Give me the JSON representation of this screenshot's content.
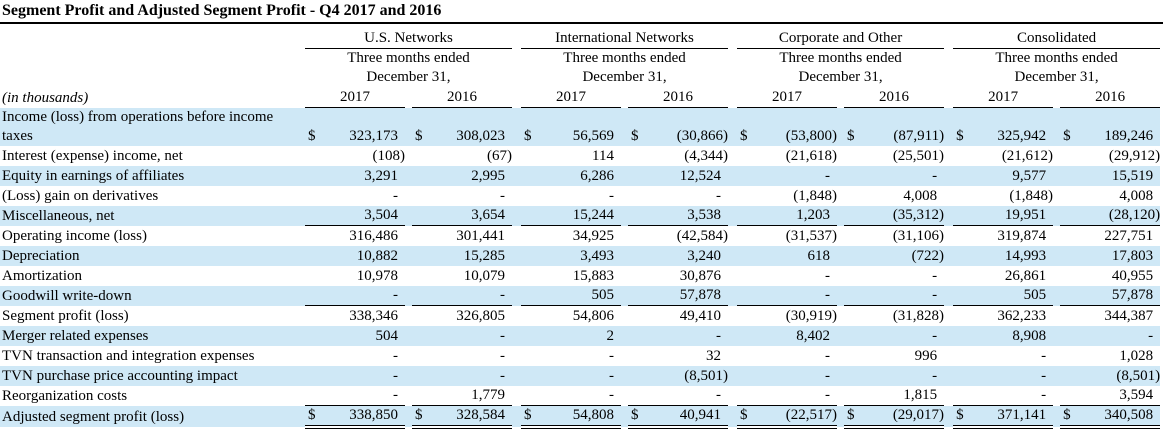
{
  "title": "Segment Profit and Adjusted Segment Profit - Q4 2017 and 2016",
  "colors": {
    "row_band_blue": "#cfe8f6",
    "text": "#000000"
  },
  "table": {
    "row_label_header": "(in thousands)",
    "currency_symbol": "$",
    "groups": [
      {
        "name": "U.S. Networks",
        "period_line1": "Three months ended",
        "period_line2": "December 31,",
        "years": [
          "2017",
          "2016"
        ]
      },
      {
        "name": "International Networks",
        "period_line1": "Three months ended",
        "period_line2": "December 31,",
        "years": [
          "2017",
          "2016"
        ]
      },
      {
        "name": "Corporate and Other",
        "period_line1": "Three months ended",
        "period_line2": "December 31,",
        "years": [
          "2017",
          "2016"
        ]
      },
      {
        "name": "Consolidated",
        "period_line1": "Three months ended",
        "period_line2": "December 31,",
        "years": [
          "2017",
          "2016"
        ]
      }
    ],
    "column_order": [
      "US Networks 2017",
      "US Networks 2016",
      "International Networks 2017",
      "International Networks 2016",
      "Corporate and Other 2017",
      "Corporate and Other 2016",
      "Consolidated 2017",
      "Consolidated 2016"
    ],
    "rows": [
      {
        "label": "Income (loss) from operations before income\ntaxes",
        "dollar": true,
        "shade": "blue",
        "rule": false,
        "double_rule": false,
        "values": [
          "323,173",
          "308,023",
          "56,569",
          "(30,866)",
          "(53,800)",
          "(87,911)",
          "325,942",
          "189,246"
        ]
      },
      {
        "label": "Interest (expense) income, net",
        "dollar": false,
        "shade": "white",
        "rule": false,
        "double_rule": false,
        "values": [
          "(108)",
          "(67)",
          "114",
          "(4,344)",
          "(21,618)",
          "(25,501)",
          "(21,612)",
          "(29,912)"
        ]
      },
      {
        "label": "Equity in earnings of affiliates",
        "dollar": false,
        "shade": "blue",
        "rule": false,
        "double_rule": false,
        "values": [
          "3,291",
          "2,995",
          "6,286",
          "12,524",
          "-",
          "-",
          "9,577",
          "15,519"
        ]
      },
      {
        "label": "(Loss) gain on derivatives",
        "dollar": false,
        "shade": "white",
        "rule": false,
        "double_rule": false,
        "values": [
          "-",
          "-",
          "-",
          "-",
          "(1,848)",
          "4,008",
          "(1,848)",
          "4,008"
        ]
      },
      {
        "label": "Miscellaneous, net",
        "dollar": false,
        "shade": "blue",
        "rule": true,
        "double_rule": false,
        "values": [
          "3,504",
          "3,654",
          "15,244",
          "3,538",
          "1,203",
          "(35,312)",
          "19,951",
          "(28,120)"
        ]
      },
      {
        "label": "Operating income (loss)",
        "dollar": false,
        "shade": "white",
        "rule": false,
        "double_rule": false,
        "values": [
          "316,486",
          "301,441",
          "34,925",
          "(42,584)",
          "(31,537)",
          "(31,106)",
          "319,874",
          "227,751"
        ]
      },
      {
        "label": "Depreciation",
        "dollar": false,
        "shade": "blue",
        "rule": false,
        "double_rule": false,
        "values": [
          "10,882",
          "15,285",
          "3,493",
          "3,240",
          "618",
          "(722)",
          "14,993",
          "17,803"
        ]
      },
      {
        "label": "Amortization",
        "dollar": false,
        "shade": "white",
        "rule": false,
        "double_rule": false,
        "values": [
          "10,978",
          "10,079",
          "15,883",
          "30,876",
          "-",
          "-",
          "26,861",
          "40,955"
        ]
      },
      {
        "label": "Goodwill write-down",
        "dollar": false,
        "shade": "blue",
        "rule": true,
        "double_rule": false,
        "values": [
          "-",
          "-",
          "505",
          "57,878",
          "-",
          "-",
          "505",
          "57,878"
        ]
      },
      {
        "label": "Segment profit (loss)",
        "dollar": false,
        "shade": "white",
        "rule": false,
        "double_rule": false,
        "values": [
          "338,346",
          "326,805",
          "54,806",
          "49,410",
          "(30,919)",
          "(31,828)",
          "362,233",
          "344,387"
        ]
      },
      {
        "label": "Merger related expenses",
        "dollar": false,
        "shade": "blue",
        "rule": false,
        "double_rule": false,
        "values": [
          "504",
          "-",
          "2",
          "-",
          "8,402",
          "-",
          "8,908",
          "-"
        ]
      },
      {
        "label": "TVN transaction and integration expenses",
        "dollar": false,
        "shade": "white",
        "rule": false,
        "double_rule": false,
        "values": [
          "-",
          "-",
          "-",
          "32",
          "-",
          "996",
          "-",
          "1,028"
        ]
      },
      {
        "label": "TVN purchase price accounting impact",
        "dollar": false,
        "shade": "blue",
        "rule": false,
        "double_rule": false,
        "values": [
          "-",
          "-",
          "-",
          "(8,501)",
          "-",
          "-",
          "-",
          "(8,501)"
        ]
      },
      {
        "label": "Reorganization costs",
        "dollar": false,
        "shade": "white",
        "rule": true,
        "double_rule": false,
        "values": [
          "-",
          "1,779",
          "-",
          "-",
          "-",
          "1,815",
          "-",
          "3,594"
        ]
      },
      {
        "label": "Adjusted segment profit (loss)",
        "dollar": true,
        "shade": "blue",
        "rule": false,
        "double_rule": true,
        "values": [
          "338,850",
          "328,584",
          "54,808",
          "40,941",
          "(22,517)",
          "(29,017)",
          "371,141",
          "340,508"
        ]
      }
    ]
  }
}
